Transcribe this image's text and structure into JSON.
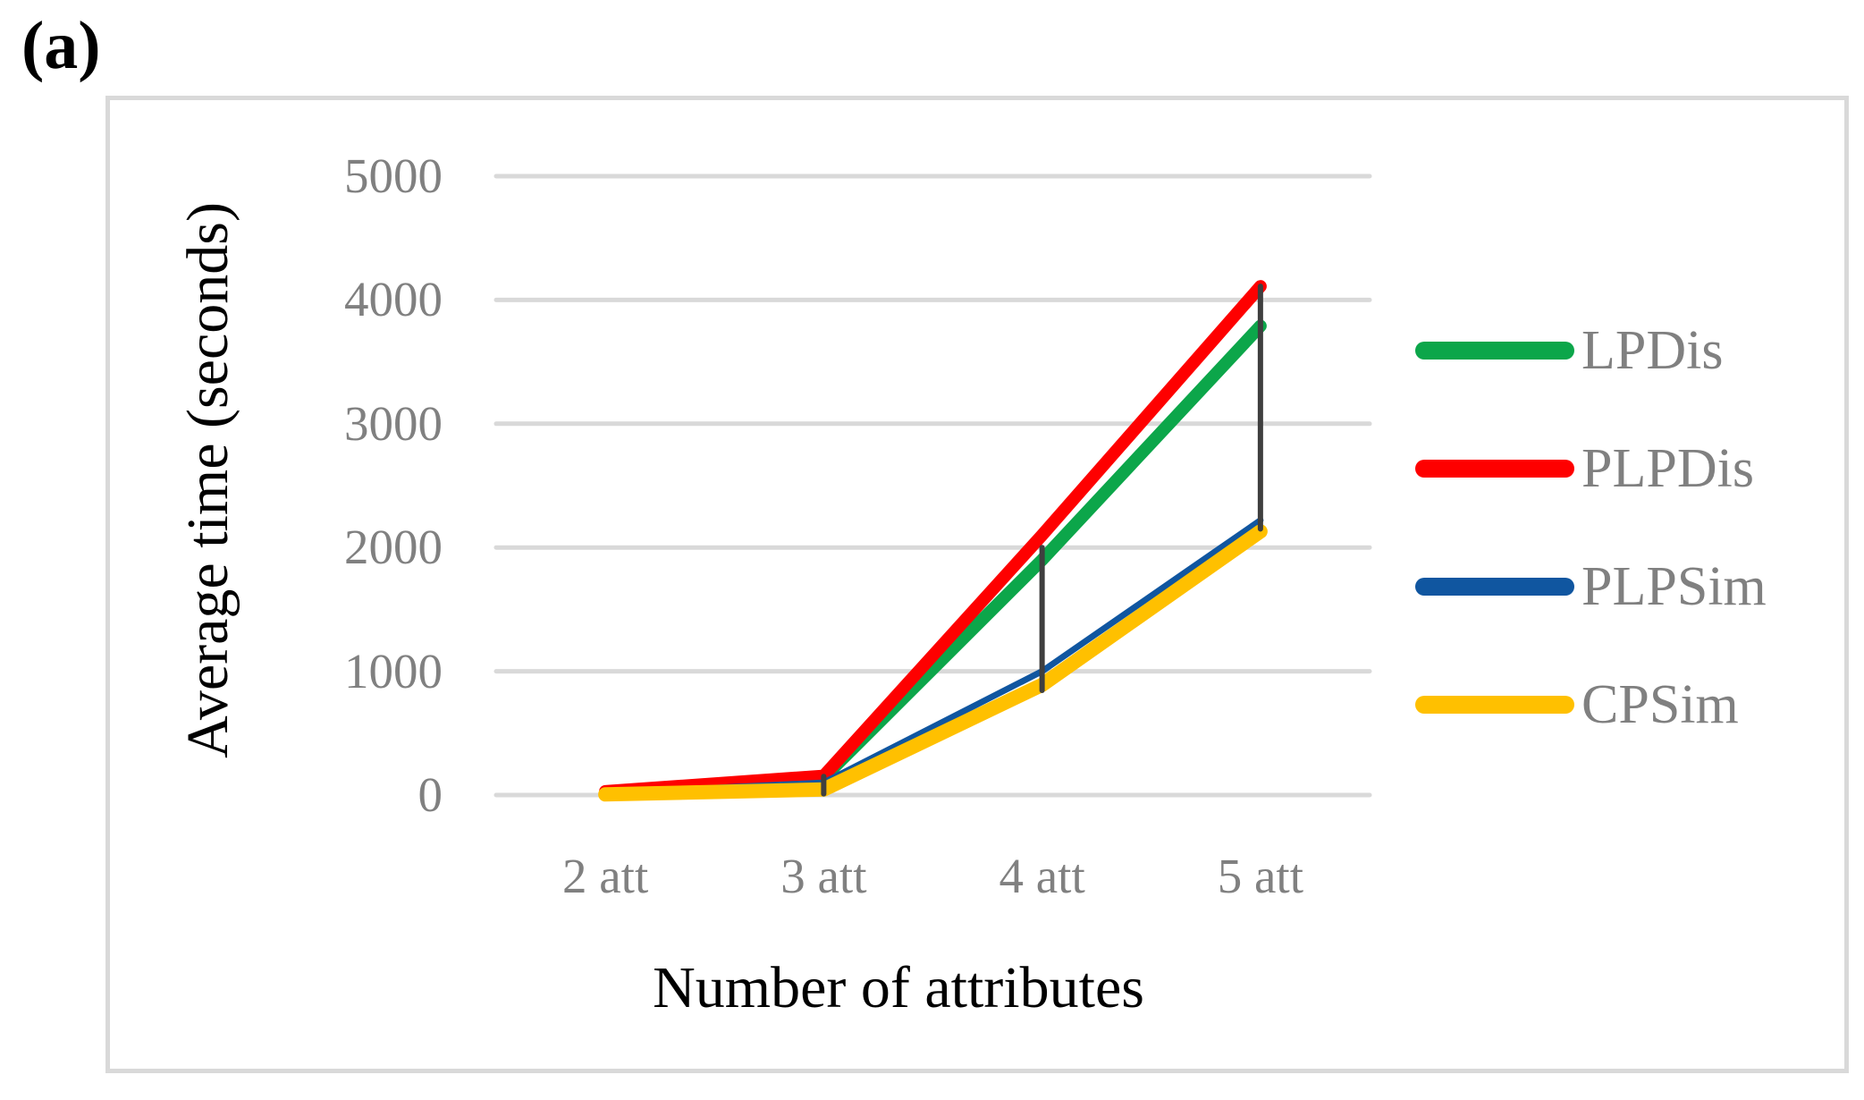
{
  "figure_label": "(a)",
  "chart_data": {
    "type": "line",
    "title": "",
    "xlabel": "Number of attributes",
    "ylabel": "Average time (seconds)",
    "categories": [
      "2 att",
      "3 att",
      "4 att",
      "5 att"
    ],
    "series": [
      {
        "name": "LPDis",
        "color": "#0CA64A",
        "stroke_width": 14,
        "values": [
          20,
          140,
          1900,
          3790
        ]
      },
      {
        "name": "PLPDis",
        "color": "#FE0000",
        "stroke_width": 14,
        "values": [
          30,
          155,
          2100,
          4110
        ]
      },
      {
        "name": "PLPSim",
        "color": "#1056A0",
        "stroke_width": 7,
        "values": [
          15,
          100,
          1000,
          2220
        ]
      },
      {
        "name": "CPSim",
        "color": "#FFC000",
        "stroke_width": 16,
        "values": [
          5,
          45,
          890,
          2130
        ]
      }
    ],
    "error_bars": [
      {
        "category_index": 1,
        "low": 10,
        "high": 150
      },
      {
        "category_index": 2,
        "low": 845,
        "high": 2000
      },
      {
        "category_index": 3,
        "low": 2150,
        "high": 4110
      }
    ],
    "ylim": [
      0,
      5000
    ],
    "yticks": [
      "0",
      "1000",
      "2000",
      "3000",
      "4000",
      "5000"
    ],
    "grid": true,
    "legend_position": "right"
  },
  "colors": {
    "gridline": "#D9D9D9",
    "frame_border": "#D9D9D9",
    "error_bar": "#3F3F3F",
    "tick_text": "#808080",
    "title_text": "#000000"
  }
}
